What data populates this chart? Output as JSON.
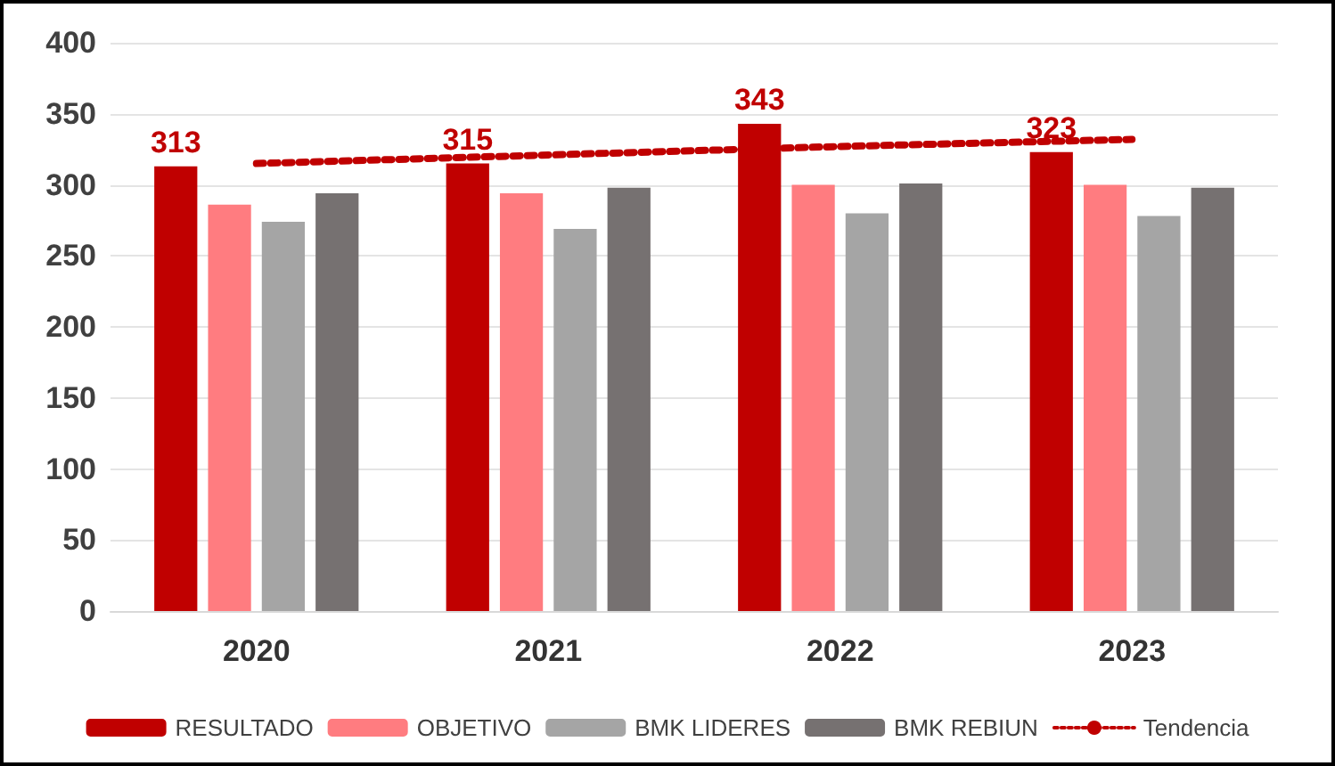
{
  "chart_data": {
    "type": "bar",
    "categories": [
      "2020",
      "2021",
      "2022",
      "2023"
    ],
    "series": [
      {
        "name": "RESULTADO",
        "color": "#c00000",
        "values": [
          313,
          315,
          343,
          323
        ],
        "value_labels": [
          "313",
          "315",
          "343",
          "323"
        ]
      },
      {
        "name": "OBJETIVO",
        "color": "#ff7c80",
        "values": [
          286,
          294,
          300,
          300
        ]
      },
      {
        "name": "BMK LIDERES",
        "color": "#a5a5a5",
        "values": [
          274,
          269,
          280,
          278
        ]
      },
      {
        "name": "BMK REBIUN",
        "color": "#767171",
        "values": [
          294,
          298,
          301,
          298
        ]
      },
      {
        "name": "Tendencia",
        "type": "line",
        "color": "#c00000",
        "line_style": "dotted",
        "marker": "none",
        "values": [
          315,
          321,
          327,
          332
        ]
      }
    ],
    "ylim": [
      0,
      400
    ],
    "yticks": [
      0,
      50,
      100,
      150,
      200,
      250,
      300,
      350,
      400
    ],
    "grid": "y",
    "legend": "bottom"
  }
}
